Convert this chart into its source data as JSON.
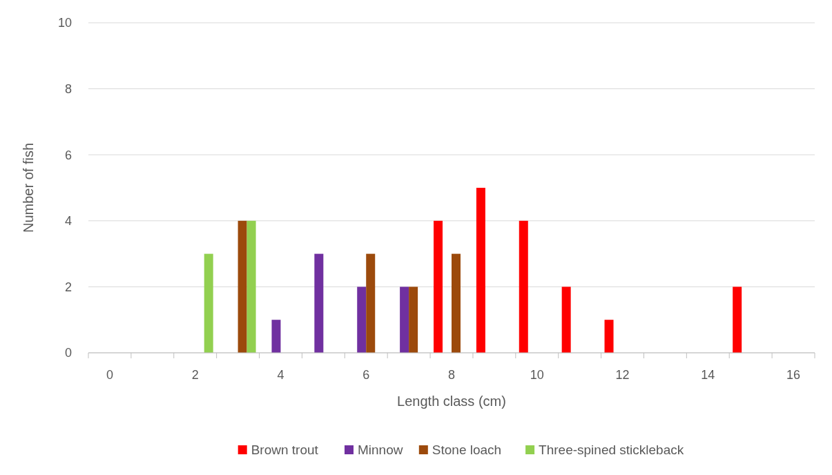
{
  "chart_data": {
    "type": "bar",
    "xlabel": "Length class (cm)",
    "ylabel": "Number of fish",
    "categories": [
      "0",
      null,
      "2",
      null,
      "4",
      null,
      "6",
      null,
      "8",
      null,
      "10",
      null,
      "12",
      null,
      "14",
      null,
      "16"
    ],
    "series": [
      {
        "name": "Brown trout",
        "color": "#ff0000",
        "values": [
          0,
          0,
          0,
          0,
          0,
          0,
          0,
          0,
          4,
          5,
          4,
          2,
          1,
          0,
          0,
          2,
          0
        ]
      },
      {
        "name": "Minnow",
        "color": "#7030a0",
        "values": [
          0,
          0,
          0,
          0,
          1,
          3,
          2,
          2,
          0,
          0,
          0,
          0,
          0,
          0,
          0,
          0,
          0
        ]
      },
      {
        "name": "Stone loach",
        "color": "#9c4a0c",
        "values": [
          0,
          0,
          0,
          4,
          0,
          0,
          3,
          2,
          3,
          0,
          0,
          0,
          0,
          0,
          0,
          0,
          0
        ]
      },
      {
        "name": "Three-spined stickleback",
        "color": "#92d050",
        "values": [
          0,
          0,
          3,
          4,
          0,
          0,
          0,
          0,
          0,
          0,
          0,
          0,
          0,
          0,
          0,
          0,
          0
        ]
      }
    ],
    "ylim": [
      0,
      10
    ],
    "yticks": [
      0,
      2,
      4,
      6,
      8,
      10
    ],
    "grid": "y",
    "legend": "bottom"
  }
}
